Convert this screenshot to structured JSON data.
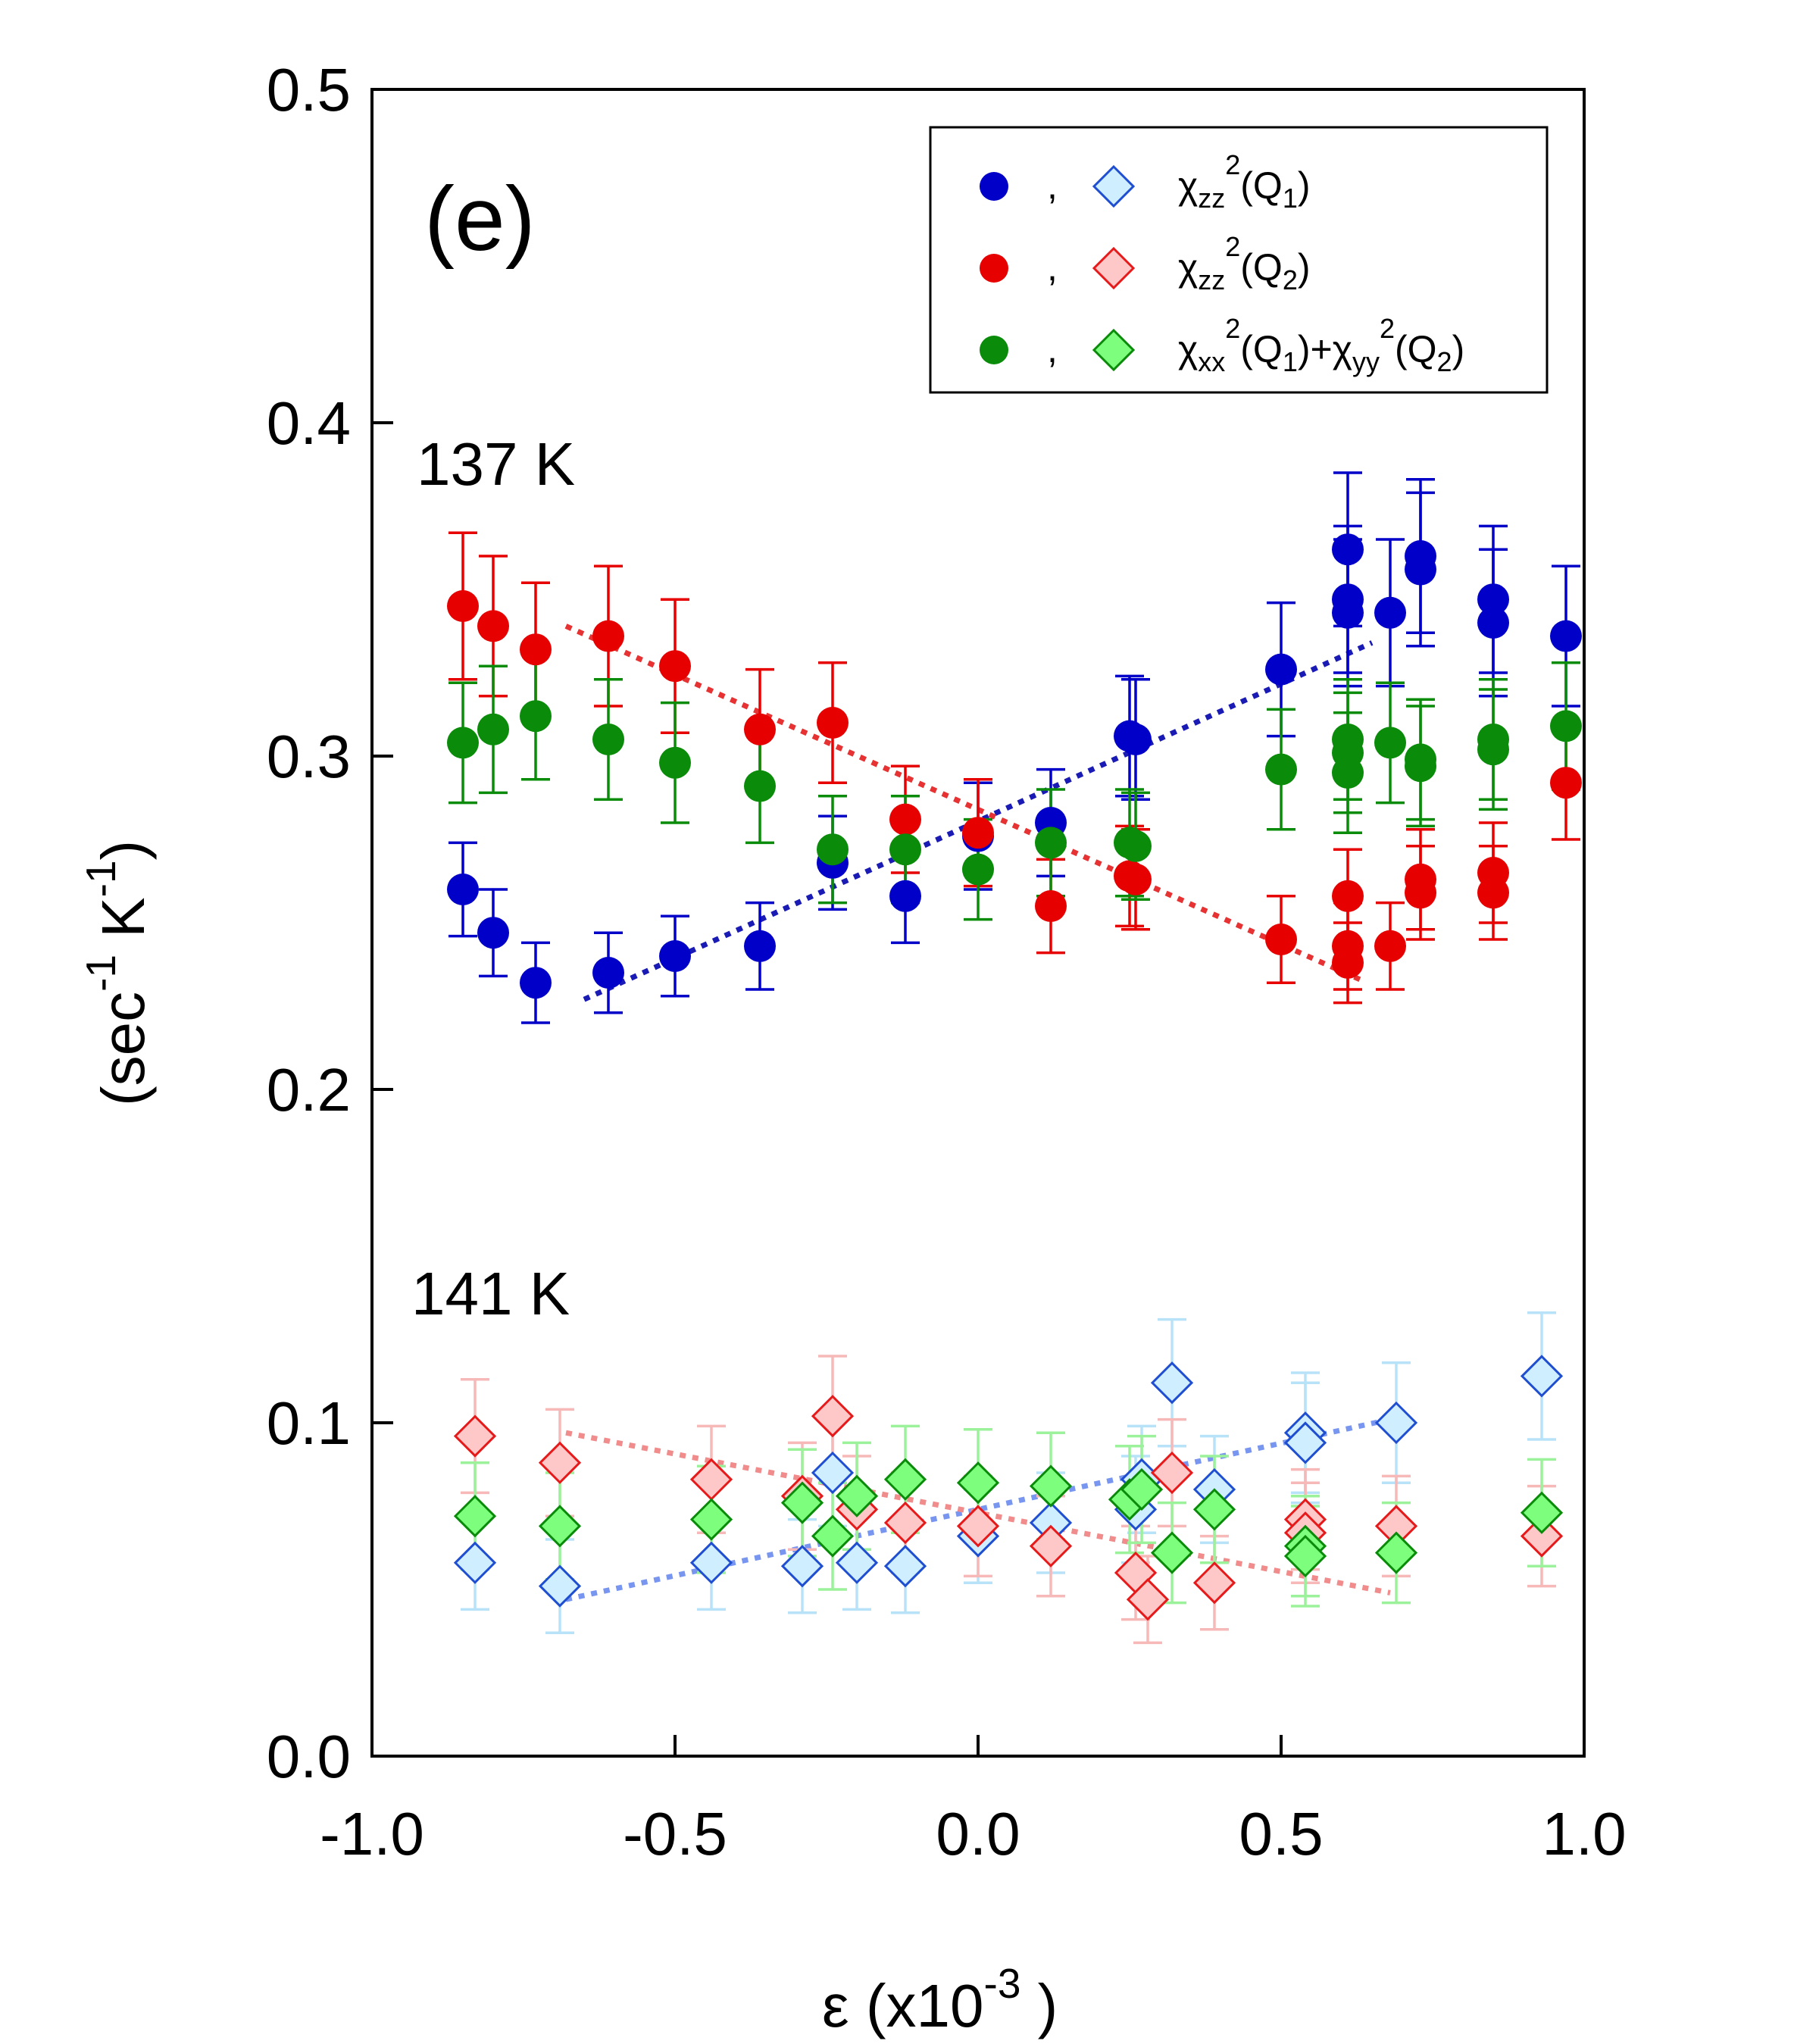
{
  "chart_data": {
    "type": "scatter",
    "panel_label": "(e)",
    "xlabel": "ε (x10-3 )",
    "xlabel_parts": {
      "main": "ε (x10",
      "sup": "-3",
      "end": " )"
    },
    "ylabel": "(sec-1 K-1)",
    "ylabel_parts": {
      "open": "(sec",
      "sup1": "-1",
      "mid": " K",
      "sup2": "-1",
      "close": ")"
    },
    "xlim": [
      -1.0,
      1.0
    ],
    "ylim": [
      0.0,
      0.5
    ],
    "x_ticks": [
      "-1.0",
      "-0.5",
      "0.0",
      "0.5",
      "1.0"
    ],
    "y_ticks": [
      "0.0",
      "0.1",
      "0.2",
      "0.3",
      "0.4",
      "0.5"
    ],
    "annotations": [
      {
        "text": "137 K"
      },
      {
        "text": "141 K"
      }
    ],
    "legend": [
      {
        "symbols": "filled-circle, open-diamond",
        "color": "#0000c8",
        "light_color": "#cfeeff",
        "light_stroke": "#1f4fd0",
        "sep": ",",
        "chi": "χ",
        "sub1": "zz",
        "sup1": "2",
        "arg1": "(Q",
        "argsub1": "1",
        "argend1": ")"
      },
      {
        "symbols": "filled-circle, open-diamond",
        "color": "#e60000",
        "light_color": "#ffc8c8",
        "light_stroke": "#e61a1a",
        "sep": ",",
        "chi": "χ",
        "sub1": "zz",
        "sup1": "2",
        "arg1": "(Q",
        "argsub1": "2",
        "argend1": ")"
      },
      {
        "symbols": "filled-circle, open-diamond",
        "color": "#0a8c0a",
        "light_color": "#7dff7d",
        "light_stroke": "#0a8c0a",
        "sep": ",",
        "chi": "χ",
        "sub1": "xx",
        "sup1": "2",
        "arg1": "(Q",
        "argsub1": "1",
        "argend1": ")+",
        "chi2": "χ",
        "sub2": "yy",
        "sup2": "2",
        "arg2": "(Q",
        "argsub2": "2",
        "argend2": ")"
      }
    ],
    "series": [
      {
        "name": "χzz²(Q1) 137 K",
        "marker": "circle",
        "fill": "#0000c8",
        "err_color": "#0000c8",
        "points": [
          [
            -0.85,
            0.26,
            0.014
          ],
          [
            -0.8,
            0.247,
            0.013
          ],
          [
            -0.73,
            0.232,
            0.012
          ],
          [
            -0.61,
            0.235,
            0.012
          ],
          [
            -0.5,
            0.24,
            0.012
          ],
          [
            -0.36,
            0.243,
            0.013
          ],
          [
            -0.24,
            0.268,
            0.014
          ],
          [
            -0.12,
            0.258,
            0.014
          ],
          [
            0.0,
            0.276,
            0.016
          ],
          [
            0.12,
            0.28,
            0.016
          ],
          [
            0.25,
            0.306,
            0.018
          ],
          [
            0.26,
            0.305,
            0.018
          ],
          [
            0.5,
            0.326,
            0.02
          ],
          [
            0.61,
            0.362,
            0.023
          ],
          [
            0.61,
            0.347,
            0.022
          ],
          [
            0.61,
            0.343,
            0.022
          ],
          [
            0.68,
            0.343,
            0.022
          ],
          [
            0.73,
            0.36,
            0.023
          ],
          [
            0.73,
            0.356,
            0.023
          ],
          [
            0.85,
            0.347,
            0.022
          ],
          [
            0.85,
            0.34,
            0.022
          ],
          [
            0.97,
            0.336,
            0.021
          ]
        ]
      },
      {
        "name": "χzz²(Q2) 137 K",
        "marker": "circle",
        "fill": "#e60000",
        "err_color": "#e60000",
        "points": [
          [
            -0.85,
            0.345,
            0.022
          ],
          [
            -0.8,
            0.339,
            0.021
          ],
          [
            -0.73,
            0.332,
            0.02
          ],
          [
            -0.61,
            0.336,
            0.021
          ],
          [
            -0.5,
            0.327,
            0.02
          ],
          [
            -0.36,
            0.308,
            0.018
          ],
          [
            -0.24,
            0.31,
            0.018
          ],
          [
            -0.12,
            0.281,
            0.016
          ],
          [
            0.0,
            0.277,
            0.016
          ],
          [
            0.12,
            0.255,
            0.014
          ],
          [
            0.25,
            0.264,
            0.015
          ],
          [
            0.26,
            0.263,
            0.015
          ],
          [
            0.5,
            0.245,
            0.013
          ],
          [
            0.61,
            0.258,
            0.014
          ],
          [
            0.61,
            0.243,
            0.013
          ],
          [
            0.61,
            0.238,
            0.012
          ],
          [
            0.68,
            0.243,
            0.013
          ],
          [
            0.73,
            0.263,
            0.015
          ],
          [
            0.73,
            0.259,
            0.014
          ],
          [
            0.85,
            0.265,
            0.015
          ],
          [
            0.85,
            0.259,
            0.014
          ],
          [
            0.97,
            0.292,
            0.017
          ]
        ]
      },
      {
        "name": "χxx²(Q1)+χyy²(Q2) 137 K",
        "marker": "circle",
        "fill": "#0a8c0a",
        "err_color": "#0a8c0a",
        "points": [
          [
            -0.85,
            0.304,
            0.018
          ],
          [
            -0.8,
            0.308,
            0.019
          ],
          [
            -0.73,
            0.312,
            0.019
          ],
          [
            -0.61,
            0.305,
            0.018
          ],
          [
            -0.5,
            0.298,
            0.018
          ],
          [
            -0.36,
            0.291,
            0.017
          ],
          [
            -0.24,
            0.272,
            0.016
          ],
          [
            -0.12,
            0.272,
            0.016
          ],
          [
            0.0,
            0.266,
            0.015
          ],
          [
            0.12,
            0.274,
            0.016
          ],
          [
            0.25,
            0.274,
            0.016
          ],
          [
            0.26,
            0.273,
            0.016
          ],
          [
            0.5,
            0.296,
            0.018
          ],
          [
            0.61,
            0.305,
            0.018
          ],
          [
            0.61,
            0.301,
            0.018
          ],
          [
            0.61,
            0.295,
            0.018
          ],
          [
            0.68,
            0.304,
            0.018
          ],
          [
            0.73,
            0.299,
            0.018
          ],
          [
            0.73,
            0.297,
            0.018
          ],
          [
            0.85,
            0.305,
            0.018
          ],
          [
            0.85,
            0.302,
            0.018
          ],
          [
            0.97,
            0.309,
            0.019
          ]
        ]
      },
      {
        "name": "χzz²(Q1) 141 K",
        "marker": "diamond",
        "fill": "#cfeeff",
        "stroke": "#1f4fd0",
        "err_color": "#b8e2f8",
        "points": [
          [
            -0.83,
            0.058,
            0.014
          ],
          [
            -0.69,
            0.051,
            0.014
          ],
          [
            -0.44,
            0.058,
            0.014
          ],
          [
            -0.29,
            0.057,
            0.014
          ],
          [
            -0.24,
            0.085,
            0.016
          ],
          [
            -0.2,
            0.058,
            0.014
          ],
          [
            -0.12,
            0.057,
            0.014
          ],
          [
            0.0,
            0.066,
            0.014
          ],
          [
            0.12,
            0.07,
            0.015
          ],
          [
            0.26,
            0.074,
            0.016
          ],
          [
            0.27,
            0.083,
            0.016
          ],
          [
            0.32,
            0.112,
            0.019
          ],
          [
            0.39,
            0.08,
            0.016
          ],
          [
            0.54,
            0.097,
            0.018
          ],
          [
            0.54,
            0.094,
            0.018
          ],
          [
            0.69,
            0.1,
            0.018
          ],
          [
            0.93,
            0.114,
            0.019
          ]
        ]
      },
      {
        "name": "χzz²(Q2) 141 K",
        "marker": "diamond",
        "fill": "#ffc8c8",
        "stroke": "#e61a1a",
        "err_color": "#f7b8b8",
        "points": [
          [
            -0.83,
            0.096,
            0.017
          ],
          [
            -0.69,
            0.088,
            0.016
          ],
          [
            -0.44,
            0.083,
            0.016
          ],
          [
            -0.29,
            0.078,
            0.016
          ],
          [
            -0.24,
            0.102,
            0.018
          ],
          [
            -0.2,
            0.074,
            0.016
          ],
          [
            -0.12,
            0.07,
            0.015
          ],
          [
            0.0,
            0.069,
            0.015
          ],
          [
            0.12,
            0.063,
            0.015
          ],
          [
            0.26,
            0.055,
            0.014
          ],
          [
            0.28,
            0.047,
            0.013
          ],
          [
            0.32,
            0.085,
            0.016
          ],
          [
            0.39,
            0.052,
            0.014
          ],
          [
            0.54,
            0.071,
            0.015
          ],
          [
            0.54,
            0.067,
            0.015
          ],
          [
            0.69,
            0.069,
            0.015
          ],
          [
            0.93,
            0.066,
            0.015
          ]
        ]
      },
      {
        "name": "χxx²(Q1)+χyy²(Q2) 141 K",
        "marker": "diamond",
        "fill": "#7dff7d",
        "stroke": "#0a8c0a",
        "err_color": "#9bf29b",
        "points": [
          [
            -0.83,
            0.072,
            0.016
          ],
          [
            -0.69,
            0.069,
            0.016
          ],
          [
            -0.44,
            0.071,
            0.016
          ],
          [
            -0.29,
            0.076,
            0.016
          ],
          [
            -0.24,
            0.066,
            0.016
          ],
          [
            -0.2,
            0.078,
            0.016
          ],
          [
            -0.12,
            0.083,
            0.016
          ],
          [
            0.0,
            0.082,
            0.016
          ],
          [
            0.12,
            0.081,
            0.016
          ],
          [
            0.25,
            0.077,
            0.016
          ],
          [
            0.27,
            0.08,
            0.016
          ],
          [
            0.32,
            0.061,
            0.015
          ],
          [
            0.39,
            0.074,
            0.016
          ],
          [
            0.54,
            0.063,
            0.015
          ],
          [
            0.54,
            0.06,
            0.015
          ],
          [
            0.69,
            0.061,
            0.015
          ],
          [
            0.93,
            0.073,
            0.016
          ]
        ]
      }
    ],
    "fit_lines": [
      {
        "name": "fit χzz²(Q1) 137 K",
        "color": "#1a1ab4",
        "x": [
          -0.65,
          0.65
        ],
        "y": [
          0.227,
          0.334
        ]
      },
      {
        "name": "fit χzz²(Q2) 137 K",
        "color": "#e63232",
        "x": [
          -0.68,
          0.63
        ],
        "y": [
          0.339,
          0.233
        ]
      },
      {
        "name": "fit χzz²(Q1) 141 K",
        "color": "#7896f0",
        "x": [
          -0.68,
          0.68
        ],
        "y": [
          0.047,
          0.101
        ]
      },
      {
        "name": "fit χzz²(Q2) 141 K",
        "color": "#f08c8c",
        "x": [
          -0.68,
          0.68
        ],
        "y": [
          0.097,
          0.049
        ]
      }
    ]
  }
}
